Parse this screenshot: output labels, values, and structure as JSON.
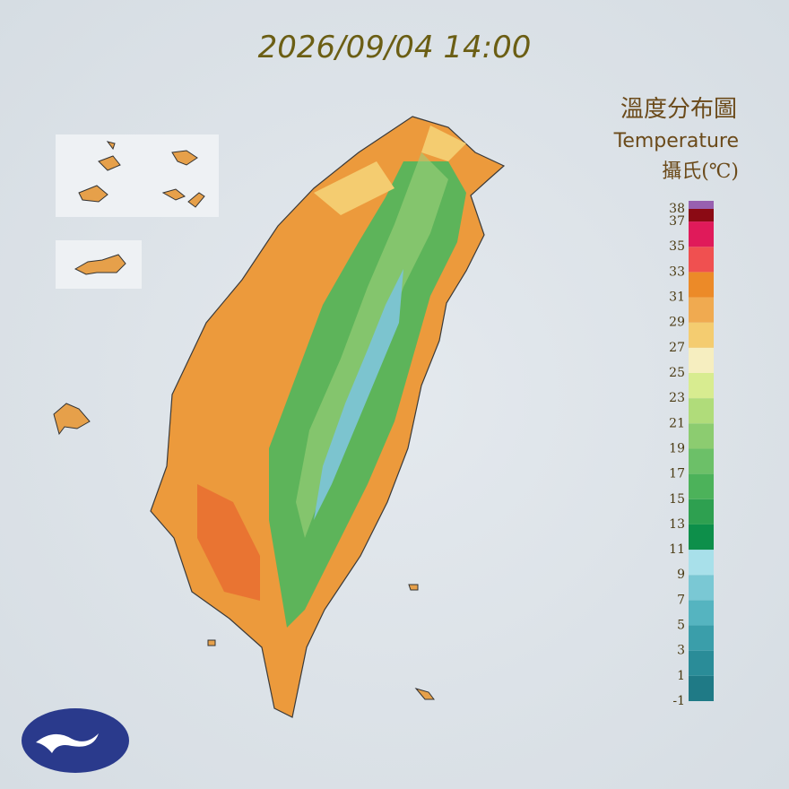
{
  "title": "2026/09/04 14:00",
  "legend": {
    "title": "溫度分布圖",
    "subtitle": "Temperature",
    "unit": "攝氏(℃)",
    "ticks": [
      -1,
      1,
      3,
      5,
      7,
      9,
      11,
      13,
      15,
      17,
      19,
      21,
      23,
      25,
      27,
      29,
      31,
      33,
      35,
      37,
      38
    ],
    "colors": [
      "#1f7a86",
      "#2a8c98",
      "#3a9eaa",
      "#55b4c0",
      "#7ac8d4",
      "#a8e0ea",
      "#0d8f4a",
      "#2ea050",
      "#4cb25a",
      "#6cc068",
      "#8ccc70",
      "#b0dc7a",
      "#d8ec90",
      "#f6eec0",
      "#f4cc70",
      "#f0aa50",
      "#ec8a28",
      "#f05050",
      "#e01a5a",
      "#8b0a14",
      "#9860b0"
    ]
  }
}
